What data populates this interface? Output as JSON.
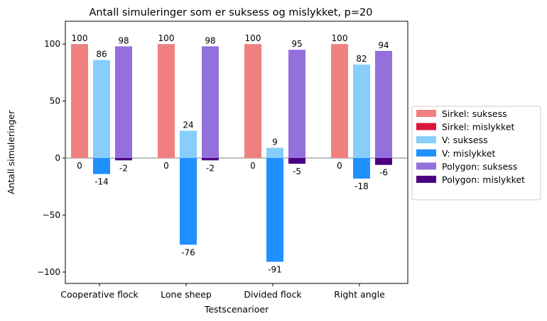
{
  "chart_data": {
    "type": "bar",
    "title": "Antall simuleringer som er suksess og mislykket, p=20",
    "xlabel": "Testscenarioer",
    "ylabel": "Antall simuleringer",
    "ylim": [
      -110,
      120
    ],
    "yticks": [
      -100,
      -50,
      0,
      50,
      100
    ],
    "ytick_labels": [
      "−100",
      "−50",
      "0",
      "50",
      "100"
    ],
    "grid": false,
    "zero_line": true,
    "legend_placement": "center-right-outside",
    "categories": [
      "Cooperative flock",
      "Lone sheep",
      "Divided flock",
      "Right angle"
    ],
    "groups": [
      {
        "success": {
          "name": "Sirkel: suksess",
          "color": "#F08080",
          "values": [
            100,
            100,
            100,
            100
          ]
        },
        "failure": {
          "name": "Sirkel: mislykket",
          "color": "#DC143C",
          "values": [
            0,
            0,
            0,
            0
          ]
        }
      },
      {
        "success": {
          "name": "V: suksess",
          "color": "#87CEFA",
          "values": [
            86,
            24,
            9,
            82
          ]
        },
        "failure": {
          "name": "V: mislykket",
          "color": "#1E90FF",
          "values": [
            -14,
            -76,
            -91,
            -18
          ]
        }
      },
      {
        "success": {
          "name": "Polygon: suksess",
          "color": "#9370DB",
          "values": [
            98,
            98,
            95,
            94
          ]
        },
        "failure": {
          "name": "Polygon: mislykket",
          "color": "#4B0082",
          "values": [
            -2,
            -2,
            -5,
            -6
          ]
        }
      }
    ]
  }
}
